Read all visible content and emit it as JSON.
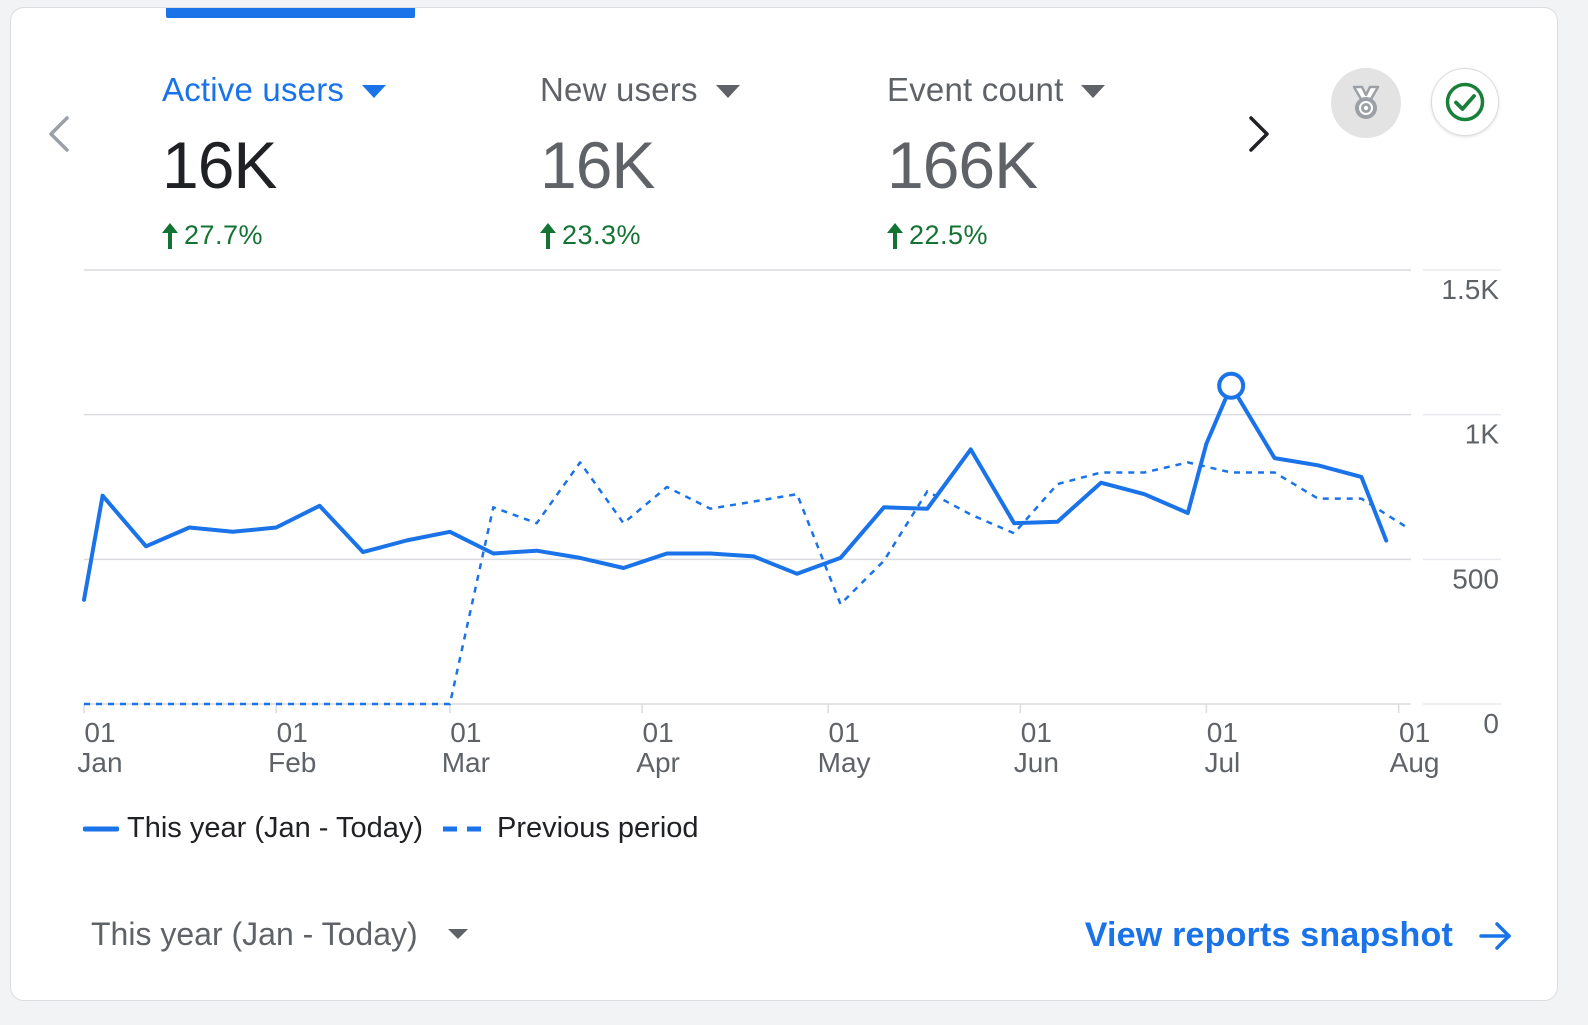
{
  "metrics": [
    {
      "label": "Active users",
      "value": "16K",
      "change": "27.7%",
      "active": true
    },
    {
      "label": "New users",
      "value": "16K",
      "change": "23.3%",
      "active": false
    },
    {
      "label": "Event count",
      "value": "166K",
      "change": "22.5%",
      "active": false
    }
  ],
  "icons": {
    "prev": "chevron-left-icon",
    "next": "chevron-right-icon",
    "insights": "award-icon",
    "status": "check-circle-icon",
    "trend": "arrow-up-icon",
    "dropdown": "caret-down-icon",
    "link": "arrow-right-icon"
  },
  "colors": {
    "accent": "#1a73e8",
    "positive": "#137333",
    "status_check": "#188038"
  },
  "chart_data": {
    "type": "line",
    "x_ticks": [
      {
        "day": "01",
        "month": "Jan",
        "x": 1
      },
      {
        "day": "01",
        "month": "Feb",
        "x": 32
      },
      {
        "day": "01",
        "month": "Mar",
        "x": 60
      },
      {
        "day": "01",
        "month": "Apr",
        "x": 91
      },
      {
        "day": "01",
        "month": "May",
        "x": 121
      },
      {
        "day": "01",
        "month": "Jun",
        "x": 152
      },
      {
        "day": "01",
        "month": "Jul",
        "x": 182
      },
      {
        "day": "01",
        "month": "Aug",
        "x": 213
      }
    ],
    "y_ticks": [
      {
        "value": 0,
        "label": "0"
      },
      {
        "value": 500,
        "label": "500"
      },
      {
        "value": 1000,
        "label": "1K"
      },
      {
        "value": 1500,
        "label": "1.5K"
      }
    ],
    "xlim": [
      1,
      215
    ],
    "ylim": [
      0,
      1500
    ],
    "grid": true,
    "legend": "bottom-left",
    "series": [
      {
        "name": "This year (Jan - Today)",
        "style": "solid",
        "color": "#1a73e8",
        "x": [
          1,
          4,
          11,
          18,
          25,
          32,
          39,
          46,
          53,
          60,
          67,
          74,
          81,
          88,
          95,
          102,
          109,
          116,
          123,
          130,
          137,
          144,
          151,
          158,
          165,
          172,
          179,
          182,
          186,
          193,
          200,
          207,
          211
        ],
        "y": [
          360,
          720,
          545,
          610,
          595,
          610,
          685,
          525,
          565,
          595,
          520,
          530,
          505,
          470,
          520,
          520,
          510,
          450,
          505,
          680,
          675,
          880,
          625,
          630,
          765,
          725,
          660,
          900,
          1100,
          850,
          825,
          785,
          565
        ],
        "highlight_index": 28
      },
      {
        "name": "Previous period",
        "style": "dashed",
        "color": "#1a73e8",
        "x": [
          1,
          60,
          67,
          74,
          81,
          88,
          95,
          102,
          109,
          116,
          123,
          130,
          137,
          144,
          151,
          158,
          165,
          172,
          179,
          186,
          193,
          200,
          207,
          214
        ],
        "y": [
          0,
          0,
          680,
          625,
          835,
          625,
          750,
          675,
          700,
          725,
          345,
          495,
          735,
          655,
          590,
          760,
          800,
          800,
          835,
          800,
          800,
          710,
          710,
          615
        ]
      }
    ]
  },
  "legend": {
    "this_year": "This year (Jan - Today)",
    "previous": "Previous period"
  },
  "footer": {
    "period_label": "This year (Jan - Today)",
    "link_label": "View reports snapshot"
  }
}
